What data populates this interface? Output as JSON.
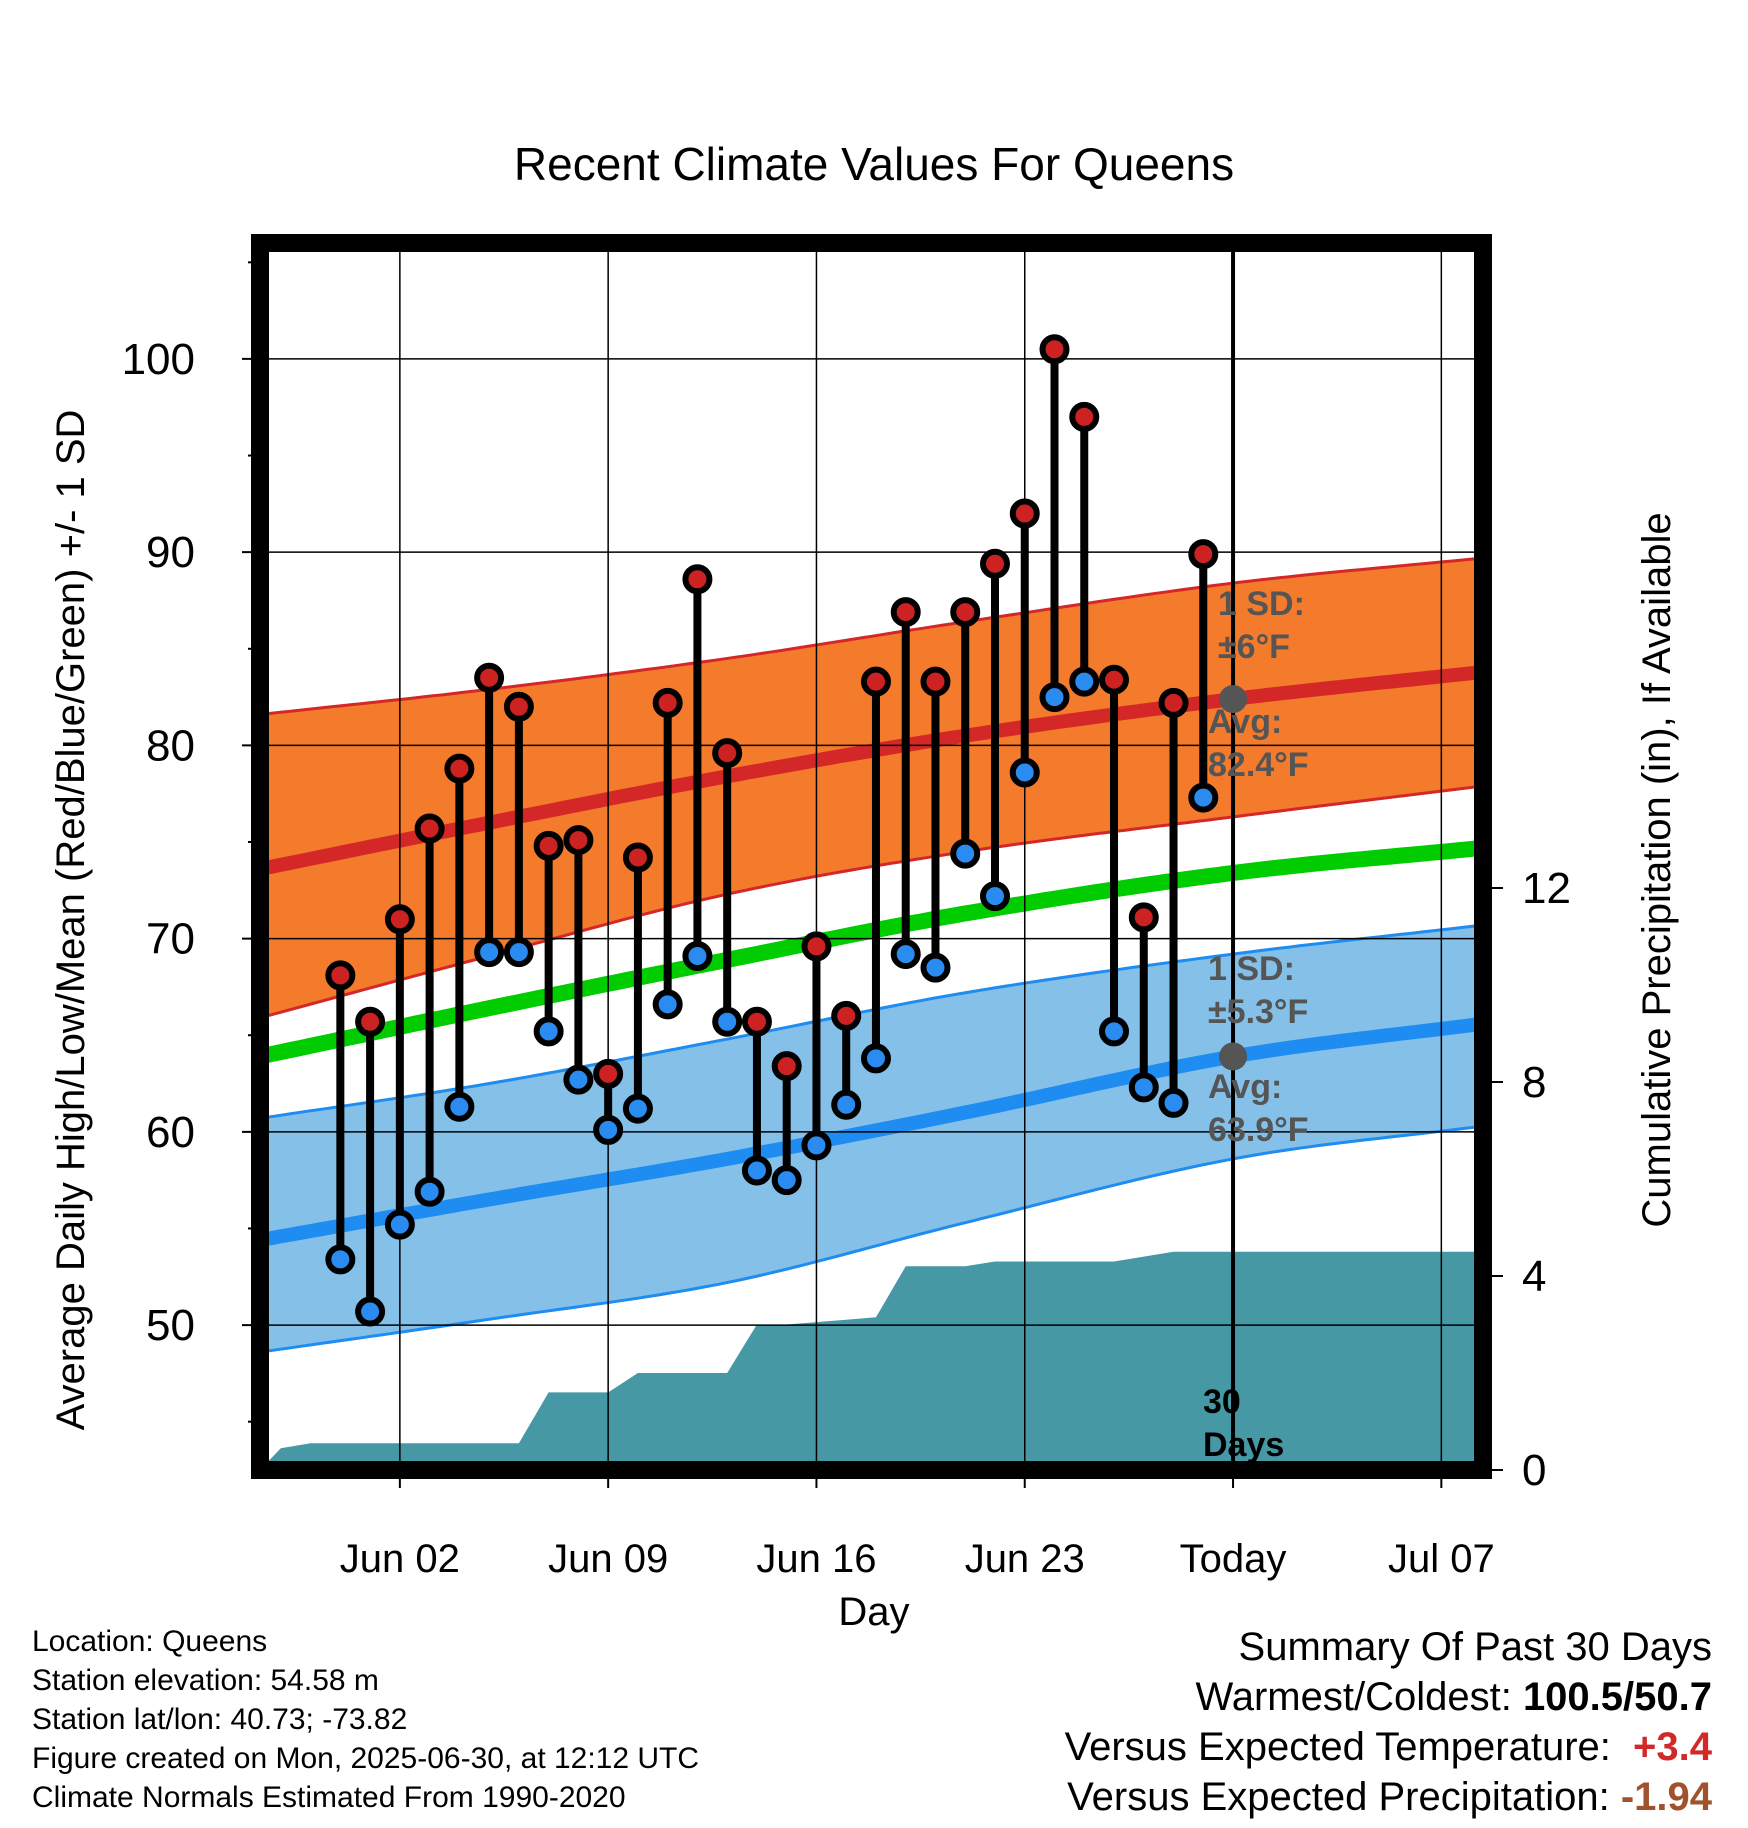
{
  "chart_data": {
    "type": "line",
    "title": "Recent Climate Values For Queens",
    "xlabel": "Day",
    "ylabel": "Average Daily High/Low/Mean (Red/Blue/Green) +/- 1 SD",
    "y2label": "Cumulative Precipitation (in), If Available",
    "ylim": [
      42.5,
      106
    ],
    "y2lim": [
      0,
      25.3
    ],
    "yticks": [
      50,
      60,
      70,
      80,
      90,
      100
    ],
    "y2ticks": [
      0,
      4,
      8,
      12
    ],
    "xlim": [
      -2.7,
      38.4
    ],
    "xtick_positions": [
      2,
      9,
      16,
      23,
      30,
      37
    ],
    "xtick_labels": [
      "Jun 02",
      "Jun 09",
      "Jun 16",
      "Jun 23",
      "Today",
      "Jul 07"
    ],
    "x_unit": "days after May 31, 2025",
    "today_x": 30,
    "observed_days": [
      0,
      1,
      2,
      3,
      4,
      5,
      6,
      7,
      8,
      9,
      10,
      11,
      12,
      13,
      14,
      15,
      16,
      17,
      18,
      19,
      20,
      21,
      22,
      23,
      24,
      25,
      26,
      27,
      28,
      29
    ],
    "observed_high": [
      68.1,
      65.7,
      71.0,
      75.7,
      78.8,
      83.5,
      82.0,
      74.8,
      75.1,
      63.0,
      74.2,
      82.2,
      88.6,
      79.6,
      65.7,
      63.4,
      69.6,
      66.0,
      83.3,
      86.9,
      83.3,
      86.9,
      89.4,
      92.0,
      100.5,
      97.0,
      83.4,
      71.1,
      82.2,
      89.9
    ],
    "observed_low": [
      53.4,
      50.7,
      55.2,
      56.9,
      61.3,
      69.3,
      69.3,
      65.2,
      62.7,
      60.1,
      61.2,
      66.6,
      69.1,
      65.7,
      58.0,
      57.5,
      59.3,
      61.4,
      63.8,
      69.2,
      68.5,
      74.4,
      72.2,
      78.6,
      82.5,
      83.3,
      65.2,
      62.3,
      61.5,
      77.3
    ],
    "normal_days": [
      -2.7,
      5,
      13,
      21,
      30,
      38.4
    ],
    "normal_high": [
      73.6,
      76.0,
      78.4,
      80.5,
      82.4,
      83.8
    ],
    "normal_high_plus_sd": [
      81.6,
      82.9,
      84.5,
      86.4,
      88.4,
      89.7
    ],
    "normal_high_minus_sd": [
      65.9,
      69.1,
      72.3,
      74.5,
      76.3,
      77.9
    ],
    "normal_low": [
      54.4,
      56.5,
      58.6,
      61.0,
      63.9,
      65.6
    ],
    "normal_low_plus_sd": [
      60.7,
      62.5,
      64.8,
      67.2,
      69.2,
      70.7
    ],
    "normal_low_minus_sd": [
      48.6,
      50.3,
      52.2,
      55.3,
      58.6,
      60.3
    ],
    "normal_mean": [
      63.9,
      66.4,
      68.9,
      71.3,
      73.4,
      74.7
    ],
    "precip_days": [
      -2.7,
      -2.0,
      -1.0,
      0,
      1,
      2,
      3,
      4,
      5,
      6,
      7,
      8,
      9,
      10,
      11,
      12,
      13,
      14,
      15,
      16,
      17,
      18,
      19,
      20,
      21,
      22,
      23,
      24,
      25,
      26,
      27,
      28,
      29,
      30,
      38.4
    ],
    "precip_cumulative": [
      0.0,
      0.45,
      0.55,
      0.55,
      0.55,
      0.55,
      0.55,
      0.55,
      0.55,
      0.55,
      1.6,
      1.6,
      1.6,
      2.0,
      2.0,
      2.0,
      2.0,
      3.0,
      3.0,
      3.05,
      3.1,
      3.15,
      4.2,
      4.2,
      4.2,
      4.3,
      4.3,
      4.3,
      4.3,
      4.3,
      4.4,
      4.5,
      4.5,
      4.5,
      4.5
    ],
    "colors": {
      "high_band": "#f47a2c",
      "high_line": "#d42828",
      "low_band": "#84c0e8",
      "low_line": "#1e8cf0",
      "mean_line": "#00cc00",
      "precip": "#4598a4",
      "high_marker": "#cc2222",
      "low_marker": "#2a8cf0",
      "annot": "#555555"
    },
    "annotations": {
      "high_sd_line1": "1 SD:",
      "high_sd_line2": "±6°F",
      "high_avg_line1": "Avg:",
      "high_avg_line2": "82.4°F",
      "low_sd_line1": "1 SD:",
      "low_sd_line2": "±5.3°F",
      "low_avg_line1": "Avg:",
      "low_avg_line2": "63.9°F",
      "days_line1": "30",
      "days_line2": "Days"
    }
  },
  "info": {
    "location": "Location: Queens",
    "elevation": "Station elevation: 54.58 m",
    "latlon": "Station lat/lon: 40.73; -73.82",
    "created": "Figure created on Mon, 2025-06-30, at 12:12 UTC",
    "normals": "Climate Normals Estimated From 1990-2020"
  },
  "summary": {
    "title": "Summary Of Past 30 Days",
    "warm_label": "Warmest/Coldest:",
    "warm_value": "100.5/50.7",
    "temp_label": "Versus Expected Temperature:",
    "temp_value": "+3.4",
    "temp_color": "#d42828",
    "precip_label": "Versus Expected Precipitation:",
    "precip_value": "-1.94",
    "precip_color": "#a0522d"
  }
}
